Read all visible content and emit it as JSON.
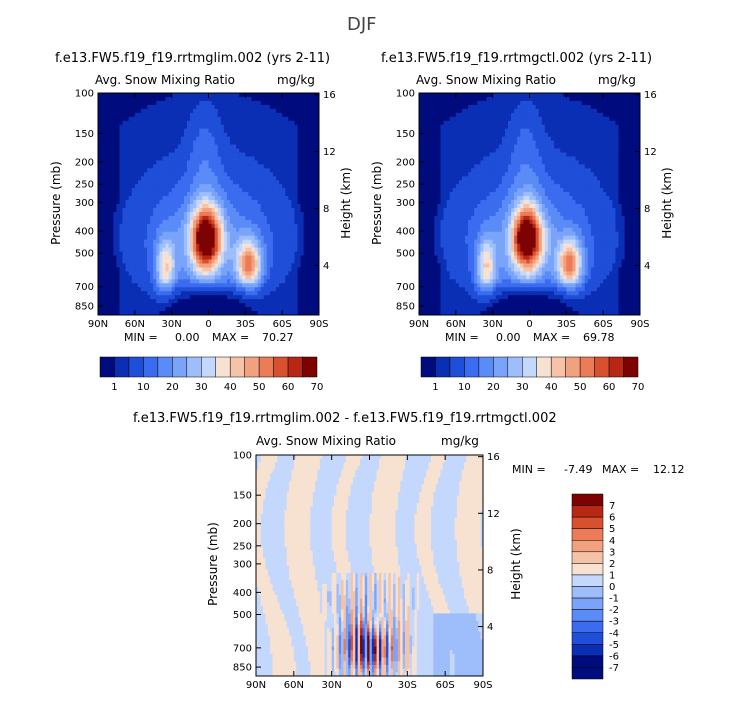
{
  "figure": {
    "title": "DJF",
    "colors": {
      "blue_scale": [
        "#000c7d",
        "#0a2fb5",
        "#1f4ed8",
        "#3b6cf0",
        "#5b8bf7",
        "#7aa4fa",
        "#9ebdfb",
        "#c4d7fc",
        "#f7e2d2",
        "#f6c3a8",
        "#f2a17f",
        "#ec7b57",
        "#d9502f",
        "#b82713",
        "#7d0303"
      ],
      "diff_scale": [
        "#000c7d",
        "#0a2fb5",
        "#1f4ed8",
        "#3b6cf0",
        "#5b8bf7",
        "#7aa4fa",
        "#9ebdfb",
        "#c4d7fc",
        "#f7e2d2",
        "#f6c3a8",
        "#f2a17f",
        "#ec7b57",
        "#d9502f",
        "#b82713",
        "#7d0303"
      ]
    }
  },
  "chart_data": [
    {
      "type": "heatmap",
      "panel": "left",
      "title": "f.e13.FW5.f19_f19.rrtmglim.002 (yrs 2-11)",
      "subtitle_left": "Avg. Snow Mixing Ratio",
      "subtitle_right": "mg/kg",
      "ylabel": "Pressure (mb)",
      "y2label": "Height (km)",
      "x_ticks": [
        "90N",
        "60N",
        "30N",
        "0",
        "30S",
        "60S",
        "90S"
      ],
      "y_ticks": [
        "100",
        "150",
        "200",
        "250",
        "300",
        "400",
        "500",
        "700",
        "850"
      ],
      "y2_ticks": [
        "16",
        "12",
        "8",
        "4"
      ],
      "min_label": "MIN =",
      "min_value": "0.00",
      "max_label": "MAX =",
      "max_value": "70.27",
      "colorbar_labels": [
        "1",
        "10",
        "20",
        "30",
        "40",
        "50",
        "60",
        "70"
      ],
      "max_num": 70.27
    },
    {
      "type": "heatmap",
      "panel": "right",
      "title": "f.e13.FW5.f19_f19.rrtmgctl.002 (yrs 2-11)",
      "subtitle_left": "Avg. Snow Mixing Ratio",
      "subtitle_right": "mg/kg",
      "ylabel": "Pressure (mb)",
      "y2label": "Height (km)",
      "x_ticks": [
        "90N",
        "60N",
        "30N",
        "0",
        "30S",
        "60S",
        "90S"
      ],
      "y_ticks": [
        "100",
        "150",
        "200",
        "250",
        "300",
        "400",
        "500",
        "700",
        "850"
      ],
      "y2_ticks": [
        "16",
        "12",
        "8",
        "4"
      ],
      "min_label": "MIN =",
      "min_value": "0.00",
      "max_label": "MAX =",
      "max_value": "69.78",
      "colorbar_labels": [
        "1",
        "10",
        "20",
        "30",
        "40",
        "50",
        "60",
        "70"
      ],
      "max_num": 69.78
    },
    {
      "type": "heatmap",
      "panel": "difference",
      "title": "f.e13.FW5.f19_f19.rrtmglim.002 - f.e13.FW5.f19_f19.rrtmgctl.002",
      "subtitle_left": "Avg. Snow Mixing Ratio",
      "subtitle_right": "mg/kg",
      "ylabel": "Pressure (mb)",
      "y2label": "Height (km)",
      "x_ticks": [
        "90N",
        "60N",
        "30N",
        "0",
        "30S",
        "60S",
        "90S"
      ],
      "y_ticks": [
        "100",
        "150",
        "200",
        "250",
        "300",
        "400",
        "500",
        "700",
        "850"
      ],
      "y2_ticks": [
        "16",
        "12",
        "8",
        "4"
      ],
      "min_label": "MIN =",
      "min_value": "-7.49",
      "max_label": "MAX =",
      "max_value": "12.12",
      "colorbar_labels": [
        "7",
        "6",
        "5",
        "4",
        "3",
        "2",
        "1",
        "0",
        "-1",
        "-2",
        "-3",
        "-4",
        "-5",
        "-6",
        "-7"
      ]
    }
  ]
}
